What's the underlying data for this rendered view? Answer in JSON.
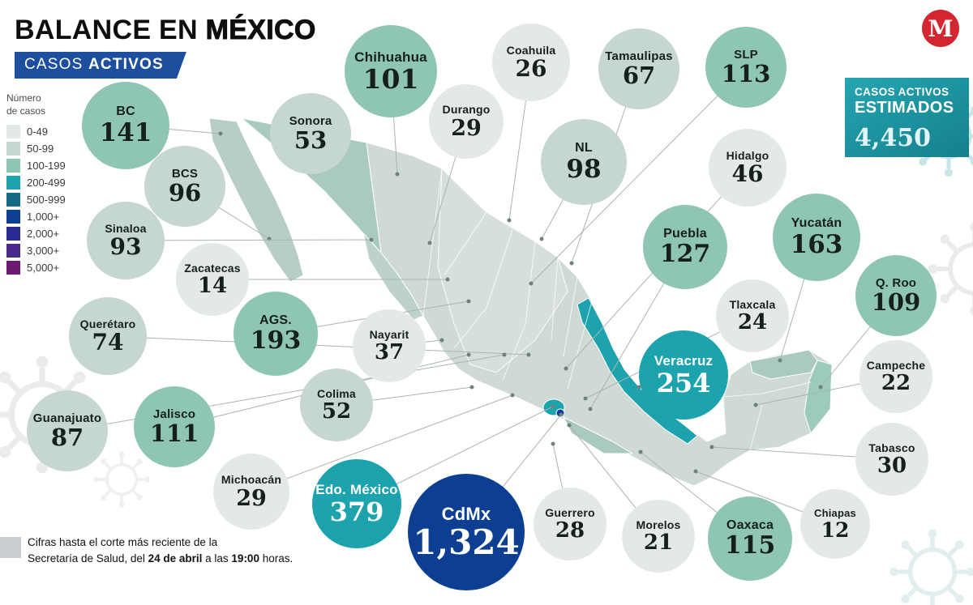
{
  "header": {
    "title_primary": "BALANCE EN ",
    "title_emphasis": "MÉXICO",
    "badge_primary": "CASOS ",
    "badge_emphasis": "ACTIVOS"
  },
  "brand": {
    "name": "Milenio",
    "logo_letter": "M"
  },
  "estimated_box": {
    "line1": "CASOS ACTIVOS",
    "line2": "ESTIMADOS",
    "value": "4,450"
  },
  "legend": {
    "title_line1": "Número",
    "title_line2": "de casos",
    "items": [
      {
        "label": "0-49",
        "color": "#e4e9e7"
      },
      {
        "label": "50-99",
        "color": "#c6d6d0"
      },
      {
        "label": "100-199",
        "color": "#8fc5b5"
      },
      {
        "label": "200-499",
        "color": "#1ca3ad"
      },
      {
        "label": "500-999",
        "color": "#156a83"
      },
      {
        "label": "1,000+",
        "color": "#0c3e91"
      },
      {
        "label": "2,000+",
        "color": "#282a90"
      },
      {
        "label": "3,000+",
        "color": "#4b2b8a"
      },
      {
        "label": "5,000+",
        "color": "#6d1b70"
      }
    ]
  },
  "footer": {
    "line1": "Cifras hasta el corte más reciente de la",
    "line2_prefix": "Secretaría de Salud, del ",
    "line2_bold1": "24 de abril",
    "line2_mid": " a las ",
    "line2_bold2": "19:00",
    "line2_suffix": " horas."
  },
  "chart_data": {
    "type": "bubble-map",
    "title": "BALANCE EN MÉXICO",
    "subtitle": "CASOS ACTIVOS",
    "metric": "Casos activos por estado",
    "estimated_active_cases": "4,450",
    "buckets": [
      "0-49",
      "50-99",
      "100-199",
      "200-499",
      "500-999",
      "1,000+",
      "2,000+",
      "3,000+",
      "5,000+"
    ],
    "bucket_thresholds": [
      50,
      100,
      200,
      500,
      1000,
      2000,
      3000,
      5000
    ],
    "states": [
      {
        "name": "Chihuahua",
        "value": "101"
      },
      {
        "name": "Coahuila",
        "value": "26"
      },
      {
        "name": "Tamaulipas",
        "value": "67"
      },
      {
        "name": "SLP",
        "value": "113"
      },
      {
        "name": "BC",
        "value": "141"
      },
      {
        "name": "Sonora",
        "value": "53"
      },
      {
        "name": "Durango",
        "value": "29"
      },
      {
        "name": "NL",
        "value": "98"
      },
      {
        "name": "Hidalgo",
        "value": "46"
      },
      {
        "name": "BCS",
        "value": "96"
      },
      {
        "name": "Sinaloa",
        "value": "93"
      },
      {
        "name": "Puebla",
        "value": "127"
      },
      {
        "name": "Yucatán",
        "value": "163"
      },
      {
        "name": "Zacatecas",
        "value": "14"
      },
      {
        "name": "Tlaxcala",
        "value": "24"
      },
      {
        "name": "Q. Roo",
        "value": "109"
      },
      {
        "name": "Querétaro",
        "value": "74"
      },
      {
        "name": "AGS.",
        "value": "193"
      },
      {
        "name": "Nayarit",
        "value": "37"
      },
      {
        "name": "Veracruz",
        "value": "254"
      },
      {
        "name": "Campeche",
        "value": "22"
      },
      {
        "name": "Guanajuato",
        "value": "87"
      },
      {
        "name": "Jalisco",
        "value": "111"
      },
      {
        "name": "Colima",
        "value": "52"
      },
      {
        "name": "Tabasco",
        "value": "30"
      },
      {
        "name": "Michoacán",
        "value": "29"
      },
      {
        "name": "Edo. México",
        "value": "379"
      },
      {
        "name": "CdMx",
        "value": "1,324"
      },
      {
        "name": "Guerrero",
        "value": "28"
      },
      {
        "name": "Morelos",
        "value": "21"
      },
      {
        "name": "Oaxaca",
        "value": "115"
      },
      {
        "name": "Chiapas",
        "value": "12"
      }
    ],
    "source_note": "Cifras hasta el corte más reciente de la Secretaría de Salud, del 24 de abril a las 19:00 horas."
  }
}
